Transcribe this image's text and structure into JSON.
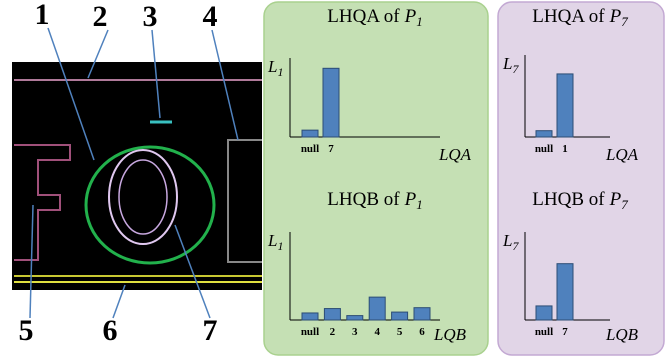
{
  "image_labels": [
    "1",
    "2",
    "3",
    "4",
    "5",
    "6",
    "7"
  ],
  "chart_data": [
    {
      "type": "bar",
      "title": "LHQA of",
      "title_symbol": "P",
      "title_subscript": "1",
      "y_label": "L",
      "y_label_subscript": "1",
      "x_label": "LQA",
      "categories": [
        "null",
        "7"
      ],
      "values": [
        0.1,
        1.0
      ],
      "ylim": [
        0,
        1.15
      ],
      "color": "#4f81bd"
    },
    {
      "type": "bar",
      "title": "LHQA of",
      "title_symbol": "P",
      "title_subscript": "7",
      "y_label": "L",
      "y_label_subscript": "7",
      "x_label": "LQA",
      "categories": [
        "null",
        "1"
      ],
      "values": [
        0.1,
        1.0
      ],
      "ylim": [
        0,
        1.3
      ],
      "color": "#4f81bd"
    },
    {
      "type": "bar",
      "title": "LHQB of",
      "title_symbol": "P",
      "title_subscript": "1",
      "y_label": "L",
      "y_label_subscript": "1",
      "x_label": "LQB",
      "categories": [
        "null",
        "2",
        "3",
        "4",
        "5",
        "6"
      ],
      "values": [
        0.08,
        0.13,
        0.05,
        0.26,
        0.09,
        0.14
      ],
      "ylim": [
        0,
        1
      ],
      "color": "#4f81bd"
    },
    {
      "type": "bar",
      "title": "LHQB of",
      "title_symbol": "P",
      "title_subscript": "7",
      "y_label": "L",
      "y_label_subscript": "7",
      "x_label": "LQB",
      "categories": [
        "null",
        "7"
      ],
      "values": [
        0.16,
        0.64
      ],
      "ylim": [
        0,
        1
      ],
      "color": "#4f81bd"
    }
  ]
}
